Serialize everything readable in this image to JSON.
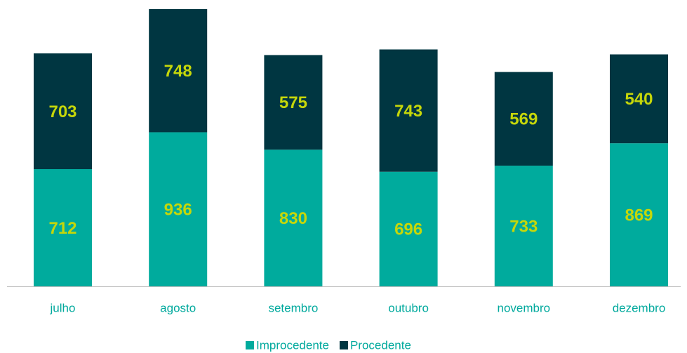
{
  "chart_data": {
    "type": "stacked_bar",
    "categories": [
      "julho",
      "agosto",
      "setembro",
      "outubro",
      "novembro",
      "dezembro"
    ],
    "series": [
      {
        "name": "Improcedente",
        "color": "#00ab9d",
        "values": [
          712,
          936,
          830,
          696,
          733,
          869
        ]
      },
      {
        "name": "Procedente",
        "color": "#003641",
        "values": [
          703,
          748,
          575,
          743,
          569,
          540
        ]
      }
    ]
  }
}
